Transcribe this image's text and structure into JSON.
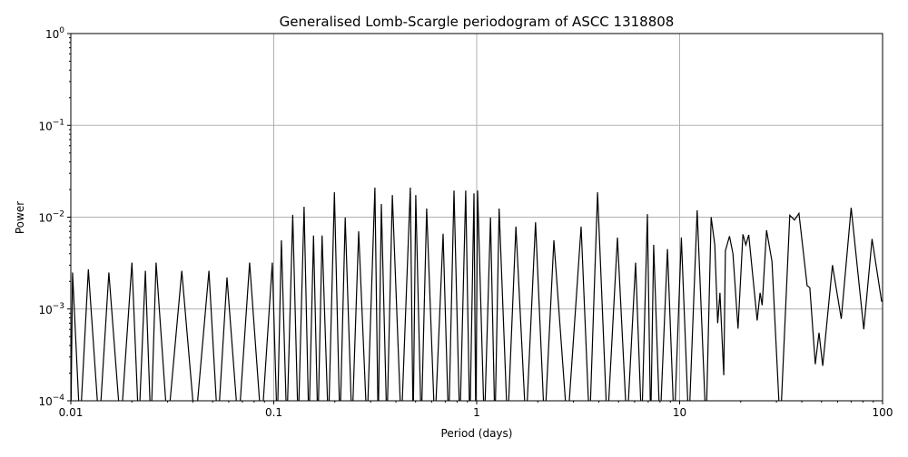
{
  "chart_data": {
    "type": "line",
    "title": "Generalised Lomb-Scargle periodogram of ASCC 1318808",
    "xlabel": "Period (days)",
    "ylabel": "Power",
    "xscale": "log",
    "yscale": "log",
    "xlim": [
      0.01,
      100
    ],
    "ylim": [
      0.0001,
      1
    ],
    "grid": true,
    "line_color": "#000000",
    "grid_color": "#b0b0b0",
    "x_ticks": [
      {
        "value": 0.01,
        "label": "0.01"
      },
      {
        "value": 0.1,
        "label": "0.1"
      },
      {
        "value": 1,
        "label": "1"
      },
      {
        "value": 10,
        "label": "10"
      },
      {
        "value": 100,
        "label": "100"
      }
    ],
    "y_ticks": [
      {
        "value": 0.0001,
        "base": "10",
        "exp": "−4"
      },
      {
        "value": 0.001,
        "base": "10",
        "exp": "−3"
      },
      {
        "value": 0.01,
        "base": "10",
        "exp": "−2"
      },
      {
        "value": 0.1,
        "base": "10",
        "exp": "−1"
      },
      {
        "value": 1,
        "base": "10",
        "exp": "0"
      }
    ],
    "series": [
      {
        "points": [
          [
            0.01,
            5e-05
          ],
          [
            0.0102,
            0.0025
          ],
          [
            0.0111,
            5e-05
          ],
          [
            0.0122,
            0.0027
          ],
          [
            0.0138,
            5e-05
          ],
          [
            0.0154,
            0.0025
          ],
          [
            0.0176,
            5e-05
          ],
          [
            0.02,
            0.0032
          ],
          [
            0.0216,
            5e-05
          ],
          [
            0.0233,
            0.0026
          ],
          [
            0.0248,
            5e-05
          ],
          [
            0.0263,
            0.0032
          ],
          [
            0.03,
            5e-05
          ],
          [
            0.0352,
            0.0026
          ],
          [
            0.041,
            5e-05
          ],
          [
            0.0479,
            0.0026
          ],
          [
            0.053,
            5e-05
          ],
          [
            0.0588,
            0.0022
          ],
          [
            0.067,
            5e-05
          ],
          [
            0.076,
            0.0032
          ],
          [
            0.087,
            5e-05
          ],
          [
            0.0984,
            0.0032
          ],
          [
            0.104,
            5e-05
          ],
          [
            0.109,
            0.0056
          ],
          [
            0.116,
            5e-05
          ],
          [
            0.124,
            0.0106
          ],
          [
            0.132,
            5e-05
          ],
          [
            0.141,
            0.013
          ],
          [
            0.149,
            5e-05
          ],
          [
            0.157,
            0.0063
          ],
          [
            0.165,
            5e-05
          ],
          [
            0.173,
            0.0063
          ],
          [
            0.186,
            5e-05
          ],
          [
            0.199,
            0.0187
          ],
          [
            0.212,
            5e-05
          ],
          [
            0.225,
            0.0099
          ],
          [
            0.243,
            5e-05
          ],
          [
            0.262,
            0.007
          ],
          [
            0.288,
            5e-05
          ],
          [
            0.315,
            0.021
          ],
          [
            0.327,
            5e-05
          ],
          [
            0.339,
            0.0139
          ],
          [
            0.361,
            5e-05
          ],
          [
            0.384,
            0.0174
          ],
          [
            0.425,
            5e-05
          ],
          [
            0.471,
            0.021
          ],
          [
            0.486,
            5e-05
          ],
          [
            0.501,
            0.0174
          ],
          [
            0.533,
            5e-05
          ],
          [
            0.567,
            0.0124
          ],
          [
            0.622,
            5e-05
          ],
          [
            0.683,
            0.0066
          ],
          [
            0.727,
            5e-05
          ],
          [
            0.773,
            0.0195
          ],
          [
            0.826,
            5e-05
          ],
          [
            0.883,
            0.0195
          ],
          [
            0.925,
            5e-05
          ],
          [
            0.97,
            0.0182
          ],
          [
            0.99,
            5e-05
          ],
          [
            1.01,
            0.0195
          ],
          [
            1.09,
            5e-05
          ],
          [
            1.17,
            0.0099
          ],
          [
            1.23,
            5e-05
          ],
          [
            1.29,
            0.0124
          ],
          [
            1.42,
            5e-05
          ],
          [
            1.56,
            0.0079
          ],
          [
            1.75,
            5e-05
          ],
          [
            1.95,
            0.0088
          ],
          [
            2.16,
            5e-05
          ],
          [
            2.4,
            0.0056
          ],
          [
            2.8,
            5e-05
          ],
          [
            3.27,
            0.0079
          ],
          [
            3.6,
            5e-05
          ],
          [
            3.94,
            0.0187
          ],
          [
            4.4,
            5e-05
          ],
          [
            4.94,
            0.006
          ],
          [
            5.5,
            5e-05
          ],
          [
            6.07,
            0.0032
          ],
          [
            6.5,
            5e-05
          ],
          [
            6.94,
            0.0108
          ],
          [
            7.2,
            5e-05
          ],
          [
            7.45,
            0.005
          ],
          [
            8.0,
            5e-05
          ],
          [
            8.71,
            0.0045
          ],
          [
            9.4,
            5e-05
          ],
          [
            10.2,
            0.006
          ],
          [
            11.1,
            5e-05
          ],
          [
            12.2,
            0.0119
          ],
          [
            13.5,
            5e-05
          ],
          [
            14.3,
            0.01
          ],
          [
            14.9,
            0.005
          ],
          [
            15.4,
            0.0007
          ],
          [
            15.8,
            0.0015
          ],
          [
            16.5,
            0.00019
          ],
          [
            16.8,
            0.0043
          ],
          [
            17.6,
            0.0062
          ],
          [
            18.3,
            0.004
          ],
          [
            19.4,
            0.00061
          ],
          [
            20.5,
            0.0065
          ],
          [
            21.2,
            0.005
          ],
          [
            21.9,
            0.0064
          ],
          [
            24.1,
            0.00075
          ],
          [
            24.9,
            0.0015
          ],
          [
            25.5,
            0.0011
          ],
          [
            26.8,
            0.0072
          ],
          [
            28.5,
            0.0033
          ],
          [
            31.3,
            5e-05
          ],
          [
            34.9,
            0.0105
          ],
          [
            36.8,
            0.0093
          ],
          [
            38.7,
            0.011
          ],
          [
            42.5,
            0.0018
          ],
          [
            43.8,
            0.0017
          ],
          [
            46.6,
            0.00025
          ],
          [
            48.6,
            0.00055
          ],
          [
            50.7,
            0.00024
          ],
          [
            56.6,
            0.003
          ],
          [
            62.6,
            0.00078
          ],
          [
            70.0,
            0.0127
          ],
          [
            80.8,
            0.0006
          ],
          [
            88.7,
            0.0058
          ],
          [
            99.0,
            0.0012
          ]
        ]
      }
    ]
  }
}
